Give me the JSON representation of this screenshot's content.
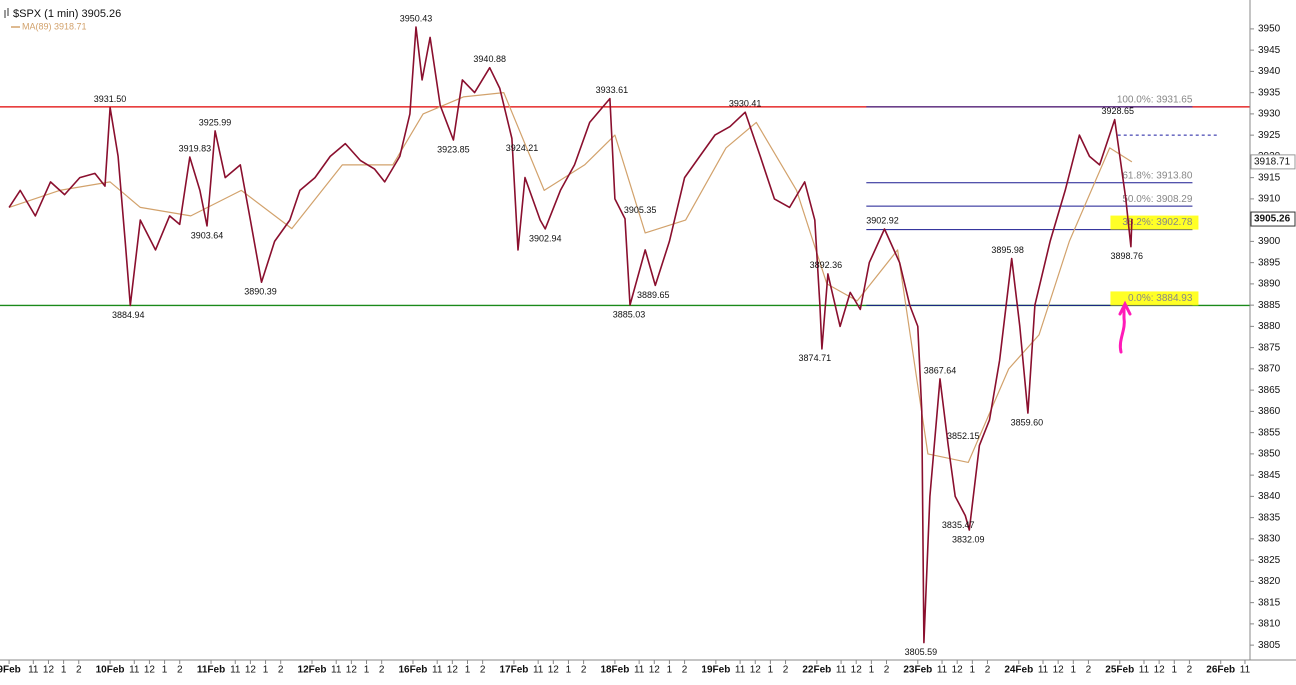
{
  "chart_data": {
    "type": "line",
    "title": "$SPX (1 min) 3905.26",
    "xlim": [
      -0.09,
      12.29
    ],
    "ylim": [
      3801.5,
      3956.8
    ],
    "yticks": [
      3805,
      3810,
      3815,
      3820,
      3825,
      3830,
      3835,
      3840,
      3845,
      3850,
      3855,
      3860,
      3865,
      3870,
      3875,
      3880,
      3885,
      3890,
      3895,
      3900,
      3905,
      3910,
      3915,
      3920,
      3925,
      3930,
      3935,
      3940,
      3945,
      3950
    ],
    "xticks": [
      {
        "value": 0,
        "label": "9Feb",
        "bold": true
      },
      {
        "value": 0.24,
        "label": "11"
      },
      {
        "value": 0.39,
        "label": "12"
      },
      {
        "value": 0.54,
        "label": "1"
      },
      {
        "value": 0.69,
        "label": "2"
      },
      {
        "value": 1,
        "label": "10Feb",
        "bold": true
      },
      {
        "value": 1.24,
        "label": "11"
      },
      {
        "value": 1.39,
        "label": "12"
      },
      {
        "value": 1.54,
        "label": "1"
      },
      {
        "value": 1.69,
        "label": "2"
      },
      {
        "value": 2,
        "label": "11Feb",
        "bold": true
      },
      {
        "value": 2.24,
        "label": "11"
      },
      {
        "value": 2.39,
        "label": "12"
      },
      {
        "value": 2.54,
        "label": "1"
      },
      {
        "value": 2.69,
        "label": "2"
      },
      {
        "value": 3,
        "label": "12Feb",
        "bold": true
      },
      {
        "value": 3.24,
        "label": "11"
      },
      {
        "value": 3.39,
        "label": "12"
      },
      {
        "value": 3.54,
        "label": "1"
      },
      {
        "value": 3.69,
        "label": "2"
      },
      {
        "value": 4,
        "label": "16Feb",
        "bold": true
      },
      {
        "value": 4.24,
        "label": "11"
      },
      {
        "value": 4.39,
        "label": "12"
      },
      {
        "value": 4.54,
        "label": "1"
      },
      {
        "value": 4.69,
        "label": "2"
      },
      {
        "value": 5,
        "label": "17Feb",
        "bold": true
      },
      {
        "value": 5.24,
        "label": "11"
      },
      {
        "value": 5.39,
        "label": "12"
      },
      {
        "value": 5.54,
        "label": "1"
      },
      {
        "value": 5.69,
        "label": "2"
      },
      {
        "value": 6,
        "label": "18Feb",
        "bold": true
      },
      {
        "value": 6.24,
        "label": "11"
      },
      {
        "value": 6.39,
        "label": "12"
      },
      {
        "value": 6.54,
        "label": "1"
      },
      {
        "value": 6.69,
        "label": "2"
      },
      {
        "value": 7,
        "label": "19Feb",
        "bold": true
      },
      {
        "value": 7.24,
        "label": "11"
      },
      {
        "value": 7.39,
        "label": "12"
      },
      {
        "value": 7.54,
        "label": "1"
      },
      {
        "value": 7.69,
        "label": "2"
      },
      {
        "value": 8,
        "label": "22Feb",
        "bold": true
      },
      {
        "value": 8.24,
        "label": "11"
      },
      {
        "value": 8.39,
        "label": "12"
      },
      {
        "value": 8.54,
        "label": "1"
      },
      {
        "value": 8.69,
        "label": "2"
      },
      {
        "value": 9,
        "label": "23Feb",
        "bold": true
      },
      {
        "value": 9.24,
        "label": "11"
      },
      {
        "value": 9.39,
        "label": "12"
      },
      {
        "value": 9.54,
        "label": "1"
      },
      {
        "value": 9.69,
        "label": "2"
      },
      {
        "value": 10,
        "label": "24Feb",
        "bold": true
      },
      {
        "value": 10.24,
        "label": "11"
      },
      {
        "value": 10.39,
        "label": "12"
      },
      {
        "value": 10.54,
        "label": "1"
      },
      {
        "value": 10.69,
        "label": "2"
      },
      {
        "value": 11,
        "label": "25Feb",
        "bold": true
      },
      {
        "value": 11.24,
        "label": "11"
      },
      {
        "value": 11.39,
        "label": "12"
      },
      {
        "value": 11.54,
        "label": "1"
      },
      {
        "value": 11.69,
        "label": "2"
      },
      {
        "value": 12,
        "label": "26Feb",
        "bold": true
      },
      {
        "value": 12.24,
        "label": "11"
      }
    ],
    "series": [
      {
        "color": "#8a0f2e",
        "x": [
          0,
          0.11,
          0.26,
          0.41,
          0.55,
          0.7,
          0.85,
          0.95,
          1.0,
          1.08,
          1.15,
          1.2,
          1.3,
          1.45,
          1.59,
          1.69,
          1.79,
          1.89,
          1.96,
          2.04,
          2.14,
          2.29,
          2.39,
          2.5,
          2.63,
          2.78,
          2.88,
          3.03,
          3.18,
          3.33,
          3.48,
          3.62,
          3.72,
          3.87,
          3.97,
          4.03,
          4.09,
          4.17,
          4.27,
          4.4,
          4.49,
          4.61,
          4.76,
          4.86,
          4.98,
          5.04,
          5.11,
          5.26,
          5.31,
          5.46,
          5.6,
          5.75,
          5.95,
          6.0,
          6.1,
          6.15,
          6.3,
          6.4,
          6.54,
          6.69,
          6.84,
          6.99,
          7.14,
          7.29,
          7.44,
          7.58,
          7.73,
          7.88,
          7.98,
          8.03,
          8.05,
          8.11,
          8.23,
          8.33,
          8.43,
          8.52,
          8.67,
          8.82,
          8.92,
          9.0,
          9.04,
          9.06,
          9.12,
          9.22,
          9.3,
          9.37,
          9.47,
          9.51,
          9.61,
          9.71,
          9.81,
          9.93,
          10.01,
          10.09,
          10.16,
          10.31,
          10.46,
          10.6,
          10.7,
          10.8,
          10.95,
          11.06,
          11.11,
          11.12
        ],
        "values": [
          3908,
          3912,
          3906,
          3914,
          3911,
          3915,
          3916,
          3913,
          3931.5,
          3920,
          3900,
          3884.94,
          3905,
          3898,
          3906,
          3904,
          3919.83,
          3912,
          3903.64,
          3925.99,
          3915,
          3918,
          3905,
          3890.39,
          3900,
          3905,
          3912,
          3915,
          3920,
          3923,
          3919,
          3917,
          3914,
          3920,
          3930,
          3950.43,
          3938,
          3948,
          3932,
          3923.85,
          3938,
          3935,
          3940.88,
          3936,
          3924.21,
          3898,
          3915,
          3905,
          3902.94,
          3912,
          3918,
          3928,
          3933.61,
          3910,
          3905.35,
          3885.03,
          3898,
          3889.65,
          3900,
          3915,
          3920,
          3925,
          3927,
          3930.41,
          3920,
          3910,
          3908,
          3914,
          3905,
          3885,
          3874.71,
          3892.36,
          3880,
          3888,
          3884,
          3895,
          3902.92,
          3895,
          3885,
          3880,
          3860,
          3805.59,
          3840,
          3867.64,
          3852.15,
          3840,
          3835.47,
          3832.09,
          3852,
          3858,
          3872,
          3895.98,
          3880,
          3859.6,
          3885,
          3900,
          3912,
          3925,
          3920,
          3918,
          3928.65,
          3910,
          3898.76,
          3905.26
        ]
      },
      {
        "name": "MA(89) 3918.71",
        "color": "#d2a26c",
        "x": [
          0,
          0.5,
          1.0,
          1.3,
          1.8,
          2.3,
          2.8,
          3.3,
          3.8,
          4.1,
          4.5,
          4.9,
          5.3,
          5.7,
          6.0,
          6.3,
          6.7,
          7.1,
          7.4,
          7.8,
          8.1,
          8.4,
          8.8,
          9.1,
          9.5,
          9.9,
          10.2,
          10.5,
          10.9,
          11.12
        ],
        "values": [
          3908,
          3912,
          3914,
          3908,
          3906,
          3912,
          3903,
          3918,
          3918,
          3930,
          3934,
          3935,
          3912,
          3918,
          3925,
          3902,
          3905,
          3922,
          3928,
          3912,
          3890,
          3886,
          3898,
          3850,
          3848,
          3870,
          3878,
          3900,
          3922,
          3918.71
        ]
      }
    ],
    "hlines": [
      {
        "value": 3931.65,
        "color": "#e00000"
      },
      {
        "value": 3884.93,
        "color": "#1a8a1a"
      }
    ],
    "fib": {
      "x": [
        8.49,
        11.72
      ],
      "color": "#1a1a90",
      "levels": [
        {
          "value": 3931.65,
          "label": "100.0%: 3931.65"
        },
        {
          "value": 3913.8,
          "label": "61.8%: 3913.80"
        },
        {
          "value": 3908.29,
          "label": "50.0%: 3908.29"
        },
        {
          "value": 3902.78,
          "label": "38.2%: 3902.78",
          "highlight": true
        },
        {
          "value": 3884.93,
          "label": "0.0%: 3884.93",
          "highlight": true
        }
      ]
    },
    "trendlines": [
      {
        "x": [
          10.98,
          11.99
        ],
        "y": [
          3925,
          3925
        ],
        "dashed": true,
        "color": "#1a1aa0"
      }
    ],
    "annotations": [
      {
        "x": 1.0,
        "y": 3931.5,
        "label": "3931.50",
        "pos": "above"
      },
      {
        "x": 1.18,
        "y": 3884.94,
        "label": "3884.94",
        "pos": "below"
      },
      {
        "x": 1.84,
        "y": 3919.83,
        "label": "3919.83",
        "pos": "above"
      },
      {
        "x": 2.04,
        "y": 3925.99,
        "label": "3925.99",
        "pos": "above"
      },
      {
        "x": 1.96,
        "y": 3903.64,
        "label": "3903.64",
        "pos": "below"
      },
      {
        "x": 2.49,
        "y": 3890.39,
        "label": "3890.39",
        "pos": "below"
      },
      {
        "x": 4.03,
        "y": 3950.43,
        "label": "3950.43",
        "pos": "above"
      },
      {
        "x": 4.4,
        "y": 3923.85,
        "label": "3923.85",
        "pos": "below"
      },
      {
        "x": 4.76,
        "y": 3940.88,
        "label": "3940.88",
        "pos": "above"
      },
      {
        "x": 5.08,
        "y": 3924.21,
        "label": "3924.21",
        "pos": "below"
      },
      {
        "x": 5.31,
        "y": 3902.94,
        "label": "3902.94",
        "pos": "below"
      },
      {
        "x": 5.97,
        "y": 3933.61,
        "label": "3933.61",
        "pos": "above"
      },
      {
        "x": 6.25,
        "y": 3905.35,
        "label": "3905.35",
        "pos": "above"
      },
      {
        "x": 6.14,
        "y": 3885.03,
        "label": "3885.03",
        "pos": "below"
      },
      {
        "x": 6.38,
        "y": 3889.65,
        "label": "3889.65",
        "pos": "below"
      },
      {
        "x": 7.29,
        "y": 3930.41,
        "label": "3930.41",
        "pos": "above"
      },
      {
        "x": 8.09,
        "y": 3892.36,
        "label": "3892.36",
        "pos": "above"
      },
      {
        "x": 7.98,
        "y": 3874.71,
        "label": "3874.71",
        "pos": "below"
      },
      {
        "x": 8.65,
        "y": 3902.92,
        "label": "3902.92",
        "pos": "above"
      },
      {
        "x": 9.03,
        "y": 3805.59,
        "label": "3805.59",
        "pos": "below"
      },
      {
        "x": 9.22,
        "y": 3867.64,
        "label": "3867.64",
        "pos": "above"
      },
      {
        "x": 9.45,
        "y": 3852.15,
        "label": "3852.15",
        "pos": "above"
      },
      {
        "x": 9.4,
        "y": 3835.47,
        "label": "3835.47",
        "pos": "below"
      },
      {
        "x": 9.5,
        "y": 3832.09,
        "label": "3832.09",
        "pos": "below"
      },
      {
        "x": 9.89,
        "y": 3895.98,
        "label": "3895.98",
        "pos": "above"
      },
      {
        "x": 10.08,
        "y": 3859.6,
        "label": "3859.60",
        "pos": "below"
      },
      {
        "x": 10.98,
        "y": 3928.65,
        "label": "3928.65",
        "pos": "above"
      },
      {
        "x": 11.07,
        "y": 3898.76,
        "label": "3898.76",
        "pos": "below"
      }
    ],
    "price_tags": [
      {
        "value": 3918.71,
        "label": "3918.71",
        "bold": false
      },
      {
        "value": 3905.26,
        "label": "3905.26",
        "bold": true
      }
    ]
  }
}
